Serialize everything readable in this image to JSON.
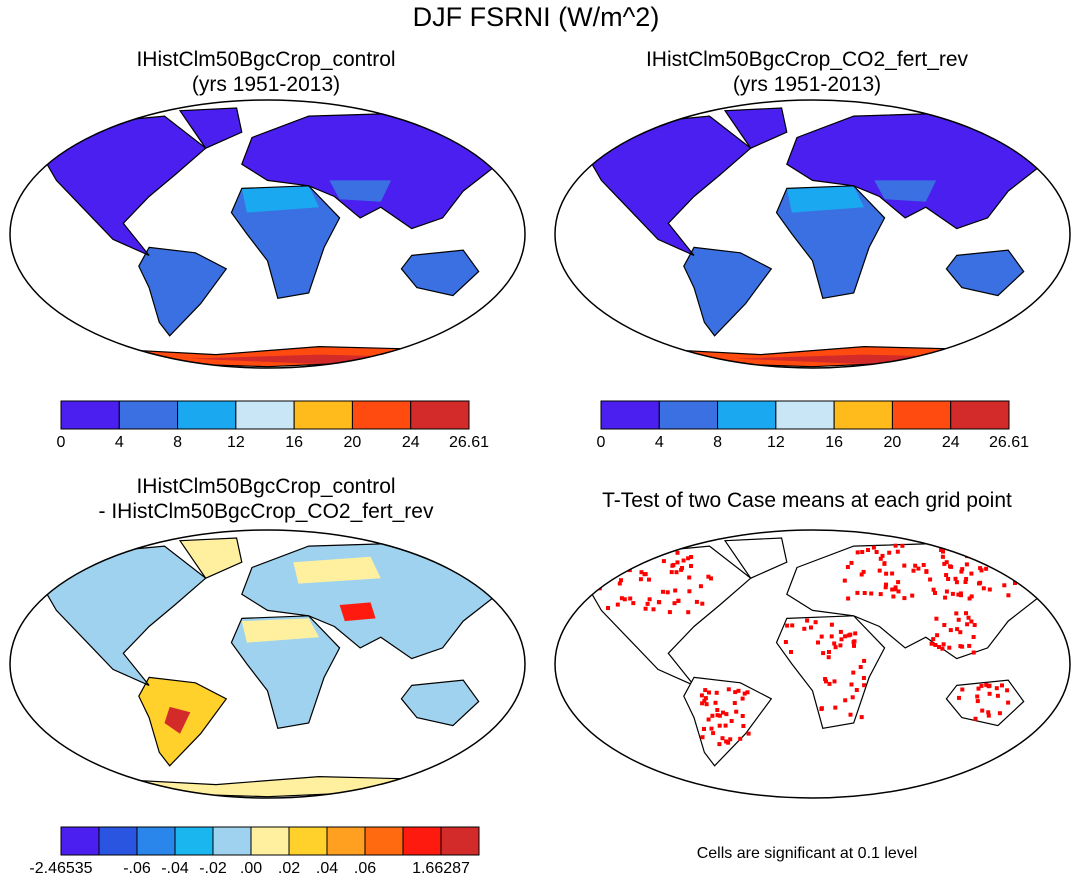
{
  "title": "DJF FSRNI (W/m^2)",
  "panels": [
    {
      "title_lines": [
        "IHistClm50BgcCrop_control",
        "(yrs 1951-2013)"
      ]
    },
    {
      "title_lines": [
        "IHistClm50BgcCrop_CO2_fert_rev",
        "(yrs 1951-2013)"
      ]
    },
    {
      "title_lines": [
        "IHistClm50BgcCrop_control",
        "- IHistClm50BgcCrop_CO2_fert_rev"
      ]
    },
    {
      "title_lines": [
        "T-Test of two Case means at each grid point"
      ]
    }
  ],
  "colorbars": {
    "mean": {
      "colors": [
        "#4a1ff0",
        "#3a70e2",
        "#1aa8f0",
        "#c8e6f6",
        "#ffbb1c",
        "#ff4a10",
        "#d32a2a"
      ],
      "labels": [
        "0",
        "4",
        "8",
        "12",
        "16",
        "20",
        "24",
        "26.61"
      ]
    },
    "diff": {
      "colors": [
        "#4a1ff0",
        "#2a55e0",
        "#2a86ea",
        "#1ab6f0",
        "#9ed2ee",
        "#fff0a0",
        "#ffd12a",
        "#ffa020",
        "#ff6a10",
        "#ff1a10",
        "#d32a2a"
      ],
      "labels": [
        "-2.46535",
        "",
        "-.06",
        "-.04",
        "-.02",
        ".00",
        ".02",
        ".04",
        ".06",
        "",
        "1.66287"
      ]
    }
  },
  "significance_color": "#ff0000",
  "note": "Cells are significant at 0.1 level"
}
